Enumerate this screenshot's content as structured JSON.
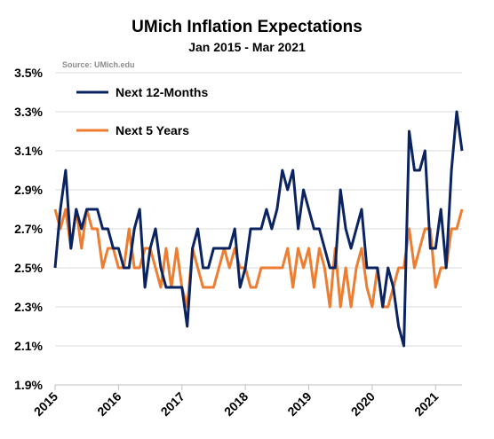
{
  "chart_data": {
    "type": "line",
    "title": "UMich Inflation Expectations",
    "subtitle": "Jan 2015 - Mar 2021",
    "source": "Source:  UMich.edu",
    "ylim": [
      1.9,
      3.5
    ],
    "y_ticks": [
      "1.9%",
      "2.1%",
      "2.3%",
      "2.5%",
      "2.7%",
      "2.9%",
      "3.1%",
      "3.3%",
      "3.5%"
    ],
    "x_range": [
      "2015-01",
      "2021-03"
    ],
    "x_ticks": [
      "2015",
      "2016",
      "2017",
      "2018",
      "2019",
      "2020",
      "2021"
    ],
    "legend_position": "top-left",
    "grid": "horizontal",
    "series": [
      {
        "name": "Next 12-Months",
        "color": "#0b2461",
        "values": [
          2.5,
          2.8,
          3.0,
          2.6,
          2.8,
          2.7,
          2.8,
          2.8,
          2.8,
          2.7,
          2.7,
          2.6,
          2.6,
          2.5,
          2.5,
          2.7,
          2.8,
          2.4,
          2.6,
          2.7,
          2.5,
          2.4,
          2.4,
          2.4,
          2.4,
          2.2,
          2.6,
          2.7,
          2.5,
          2.5,
          2.6,
          2.6,
          2.6,
          2.6,
          2.7,
          2.4,
          2.5,
          2.7,
          2.7,
          2.7,
          2.8,
          2.7,
          2.8,
          3.0,
          2.9,
          3.0,
          2.7,
          2.9,
          2.8,
          2.7,
          2.7,
          2.6,
          2.5,
          2.5,
          2.9,
          2.7,
          2.6,
          2.7,
          2.8,
          2.5,
          2.5,
          2.5,
          2.3,
          2.5,
          2.4,
          2.2,
          2.1,
          3.2,
          3.0,
          3.0,
          3.1,
          2.6,
          2.6,
          2.8,
          2.5,
          3.0,
          3.3,
          3.1
        ]
      },
      {
        "name": "Next 5 Years",
        "color": "#ed7d31",
        "values": [
          2.8,
          2.7,
          2.8,
          2.6,
          2.8,
          2.6,
          2.8,
          2.7,
          2.7,
          2.5,
          2.6,
          2.6,
          2.5,
          2.5,
          2.7,
          2.5,
          2.5,
          2.6,
          2.6,
          2.5,
          2.4,
          2.6,
          2.4,
          2.6,
          2.4,
          2.3,
          2.6,
          2.5,
          2.4,
          2.4,
          2.4,
          2.5,
          2.6,
          2.5,
          2.6,
          2.5,
          2.5,
          2.4,
          2.4,
          2.5,
          2.5,
          2.5,
          2.5,
          2.5,
          2.6,
          2.4,
          2.6,
          2.5,
          2.6,
          2.4,
          2.6,
          2.5,
          2.3,
          2.6,
          2.3,
          2.5,
          2.3,
          2.5,
          2.6,
          2.4,
          2.3,
          2.5,
          2.3,
          2.3,
          2.4,
          2.5,
          2.5,
          2.7,
          2.5,
          2.6,
          2.7,
          2.7,
          2.4,
          2.5,
          2.5,
          2.7,
          2.7,
          2.8
        ]
      }
    ]
  }
}
